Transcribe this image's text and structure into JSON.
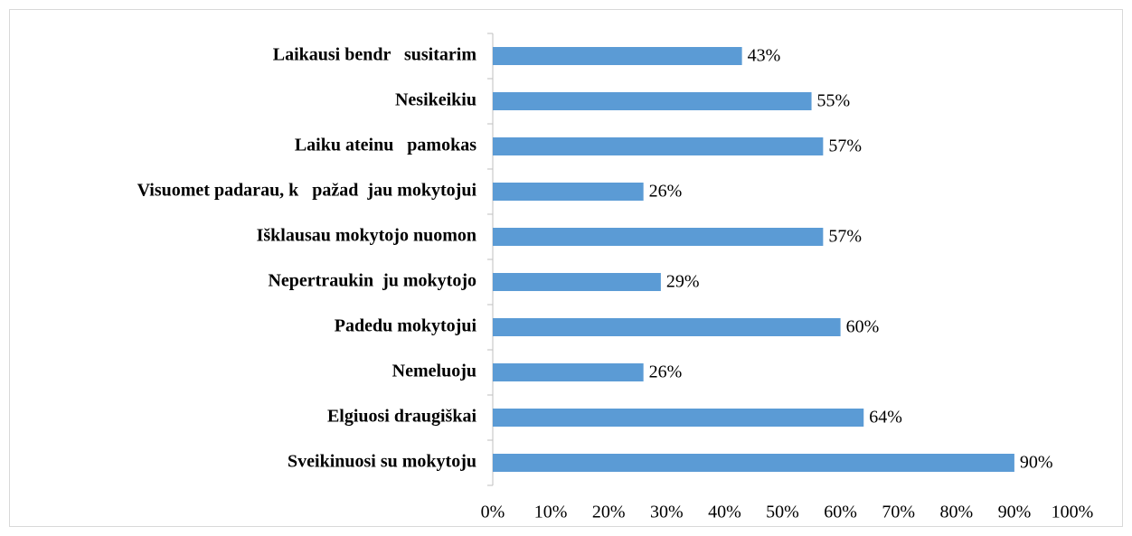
{
  "chart_data": {
    "type": "bar",
    "orientation": "horizontal",
    "categories": [
      "Laikausi bendr   susitarim",
      "Nesikeikiu",
      "Laiku ateinu   pamokas",
      "Visuomet padarau, k   pažad  jau mokytojui",
      "Išklausau mokytojo nuomon",
      "Nepertraukin  ju mokytojo",
      "Padedu mokytojui",
      "Nemeluoju",
      "Elgiuosi draugiškai",
      "Sveikinuosi su mokytoju"
    ],
    "values": [
      43,
      55,
      57,
      26,
      57,
      29,
      60,
      26,
      64,
      90
    ],
    "value_labels": [
      "43%",
      "55%",
      "57%",
      "26%",
      "57%",
      "29%",
      "60%",
      "26%",
      "64%",
      "90%"
    ],
    "color": "#5b9bd5",
    "xlim": [
      0,
      100
    ],
    "xticks": [
      {
        "value": 0,
        "label": "0%"
      },
      {
        "value": 10,
        "label": "10%"
      },
      {
        "value": 20,
        "label": "20%"
      },
      {
        "value": 30,
        "label": "30%"
      },
      {
        "value": 40,
        "label": "40%"
      },
      {
        "value": 50,
        "label": "50%"
      },
      {
        "value": 60,
        "label": "60%"
      },
      {
        "value": 70,
        "label": "70%"
      },
      {
        "value": 80,
        "label": "80%"
      },
      {
        "value": 90,
        "label": "90%"
      },
      {
        "value": 100,
        "label": "100%"
      }
    ],
    "grid": false
  }
}
